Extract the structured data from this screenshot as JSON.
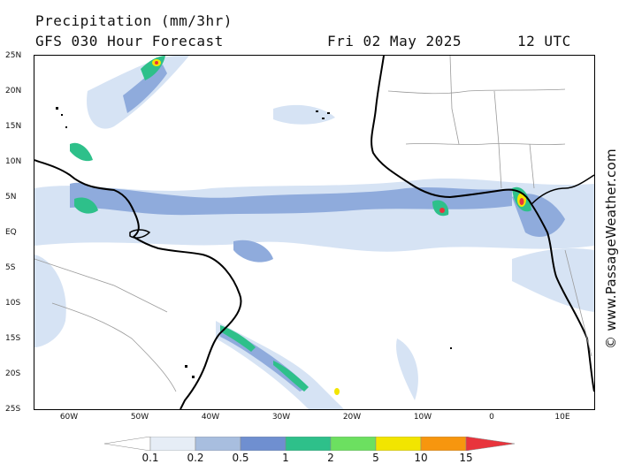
{
  "title": {
    "line1": "Precipitation (mm/3hr)",
    "line2": "GFS 030 Hour Forecast",
    "date": "Fri 02 May 2025",
    "time": "12 UTC"
  },
  "credit": "© www.PassageWeather.com",
  "map": {
    "lat_labels": [
      "25N",
      "20N",
      "15N",
      "10N",
      "5N",
      "EQ",
      "5S",
      "10S",
      "15S",
      "20S",
      "25S"
    ],
    "lon_labels": [
      "60W",
      "50W",
      "40W",
      "30W",
      "20W",
      "10W",
      "0",
      "10E"
    ],
    "lat_range": [
      -25,
      25
    ],
    "lon_range": [
      -65,
      14
    ]
  },
  "legend": {
    "values": [
      "0.1",
      "0.2",
      "0.5",
      "1",
      "2",
      "5",
      "10",
      "15"
    ],
    "colors": [
      "#ffffff",
      "#e6edf6",
      "#c3d3ea",
      "#a8bedf",
      "#6f8fd0",
      "#2ec08a",
      "#6ce060",
      "#f2e500",
      "#f7960e",
      "#e8343c"
    ]
  },
  "colors": {
    "coast": "#000000",
    "border": "#9a9a9a",
    "light_rain": "#c9daf0",
    "moderate_rain": "#7f9fd6",
    "heavy_rain": "#2ec08a"
  }
}
